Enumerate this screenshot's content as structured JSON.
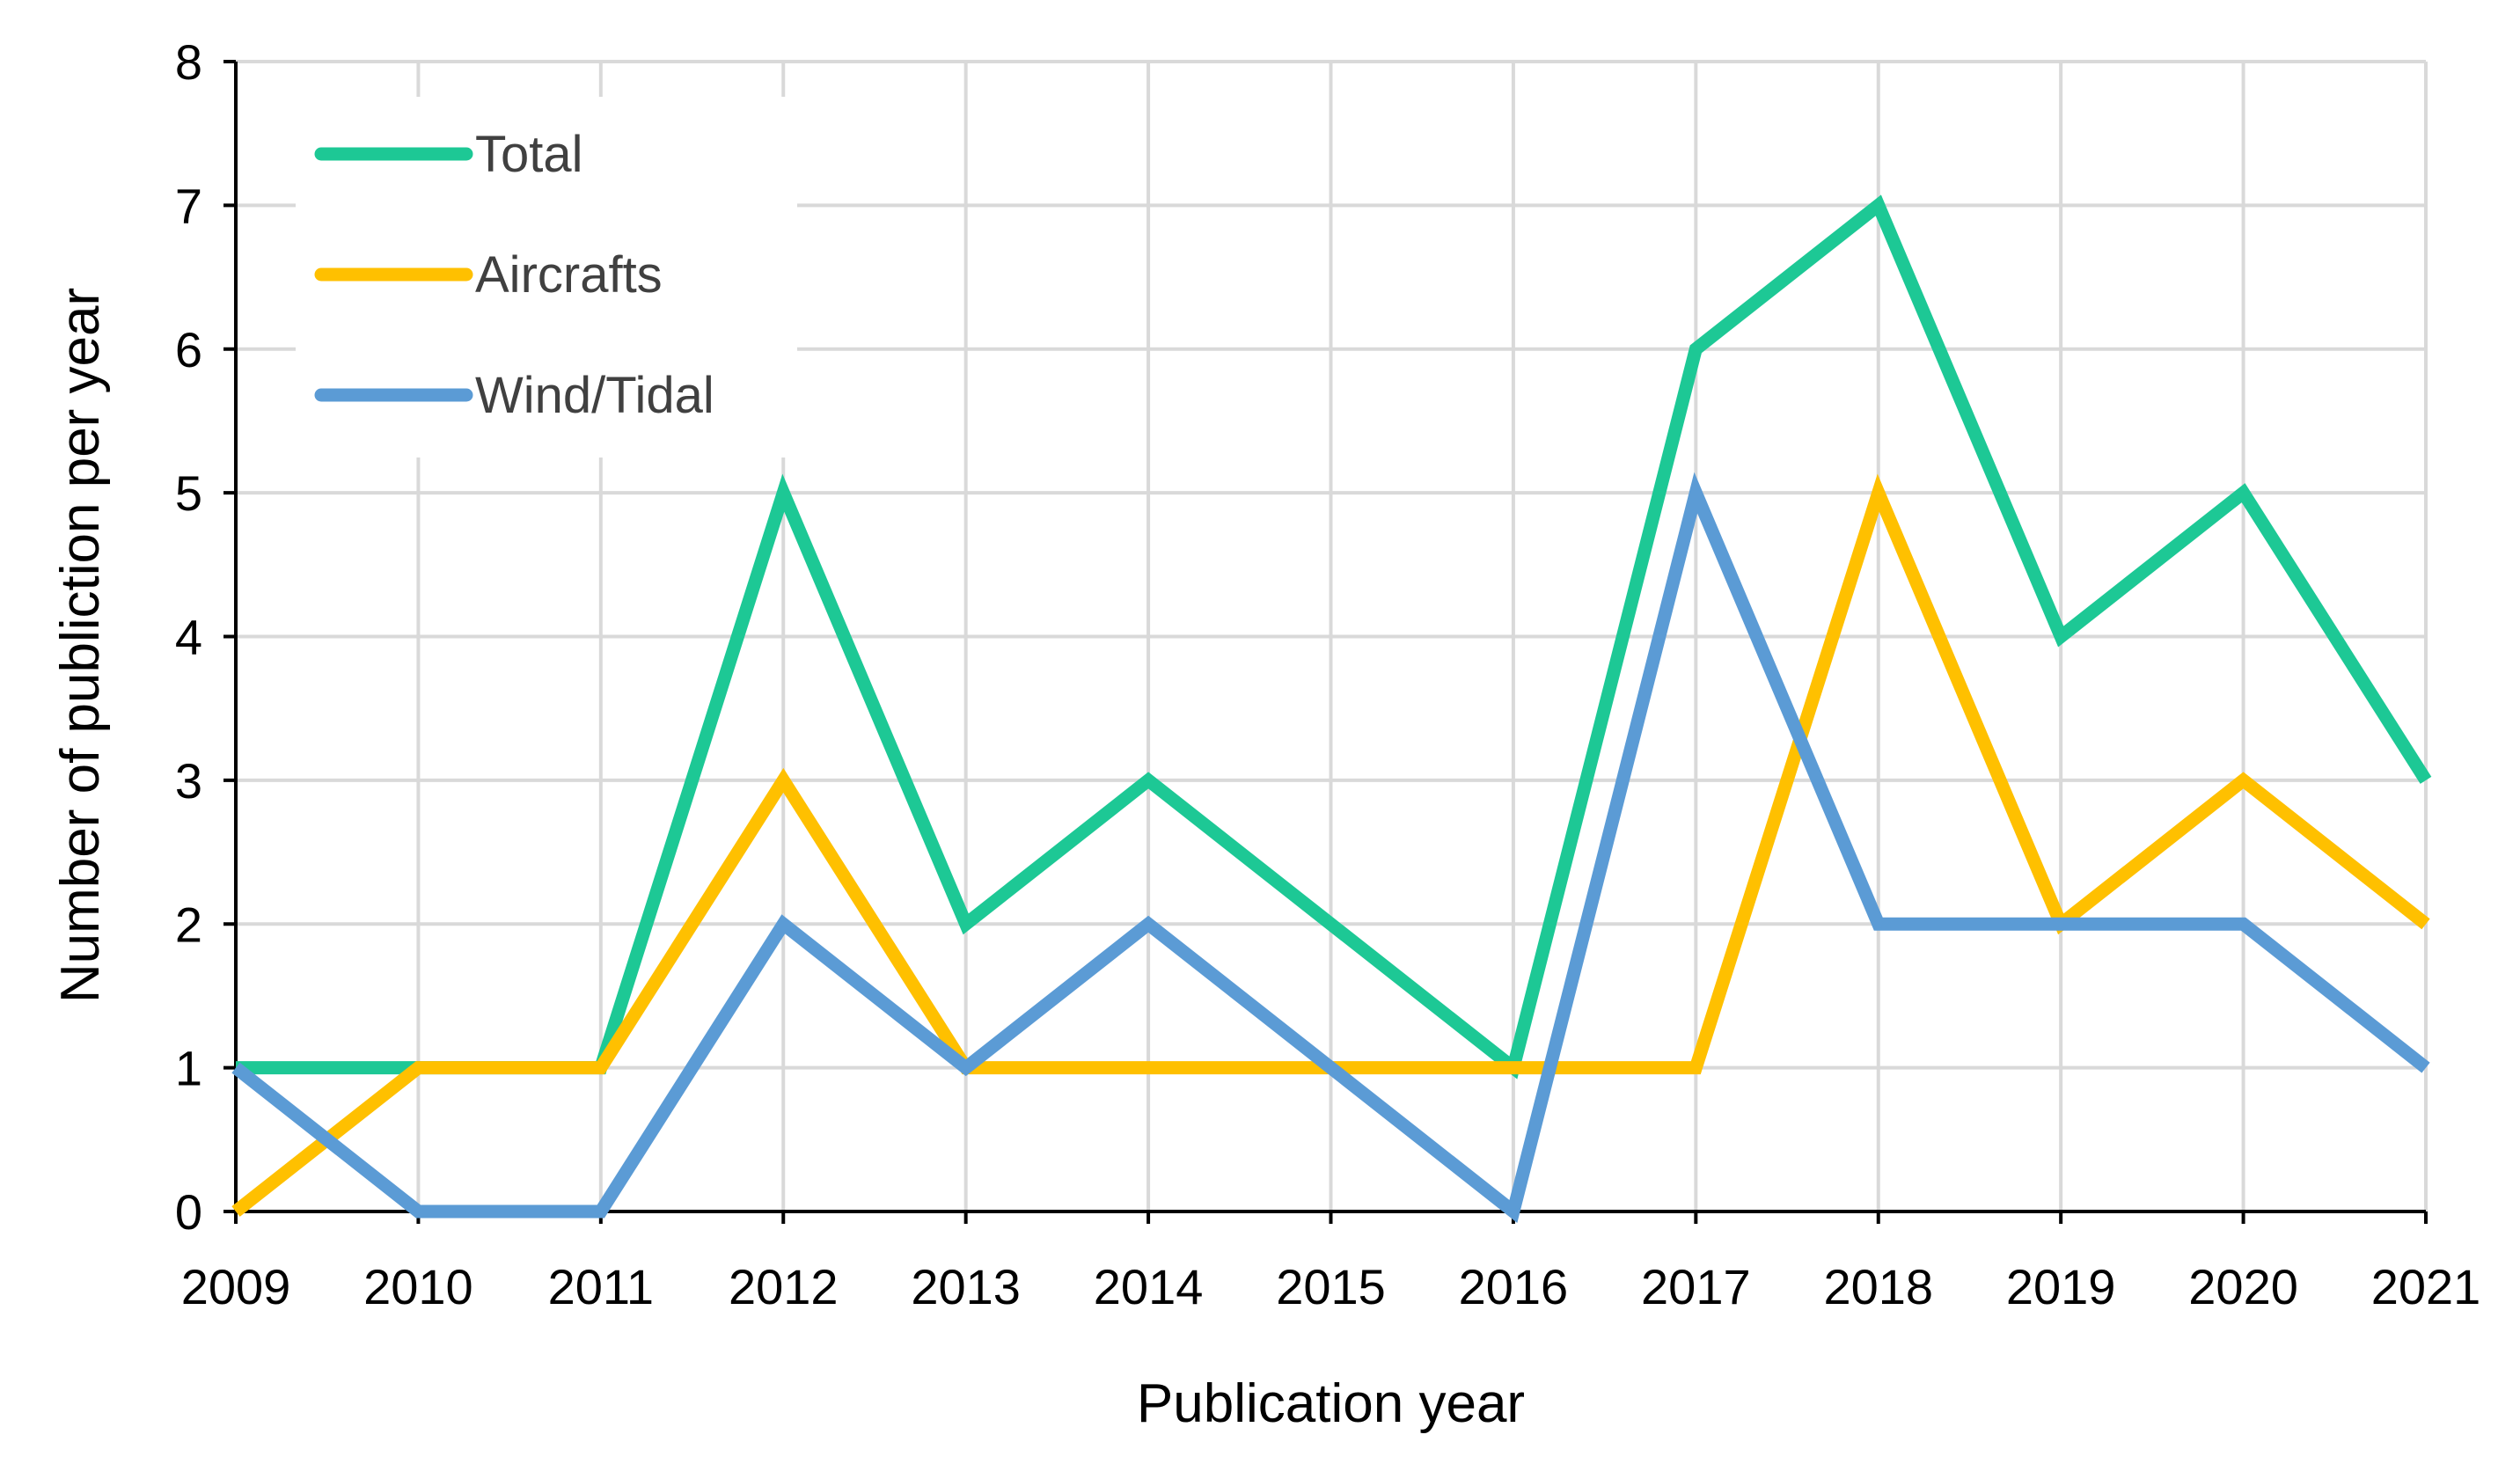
{
  "chart_data": {
    "type": "line",
    "title": "",
    "xlabel": "Publication year",
    "ylabel": "Number of publiction per year",
    "x": [
      "2009",
      "2010",
      "2011",
      "2012",
      "2013",
      "2014",
      "2015",
      "2016",
      "2017",
      "2018",
      "2019",
      "2020",
      "2021"
    ],
    "ylim": [
      0,
      8
    ],
    "yticks": [
      "0",
      "1",
      "2",
      "3",
      "4",
      "5",
      "6",
      "7",
      "8"
    ],
    "grid": true,
    "legend_position": "top-left",
    "series": [
      {
        "name": "Total",
        "color": "#1dc895",
        "values": [
          1,
          1,
          1,
          5,
          2,
          3,
          2,
          1,
          6,
          7,
          4,
          5,
          3
        ]
      },
      {
        "name": "Aircrafts",
        "color": "#ffc000",
        "values": [
          0,
          1,
          1,
          3,
          1,
          1,
          1,
          1,
          1,
          5,
          2,
          3,
          2
        ]
      },
      {
        "name": "Wind/Tidal",
        "color": "#5b9bd5",
        "values": [
          1,
          0,
          0,
          2,
          1,
          2,
          1,
          0,
          5,
          2,
          2,
          2,
          1
        ]
      }
    ]
  }
}
